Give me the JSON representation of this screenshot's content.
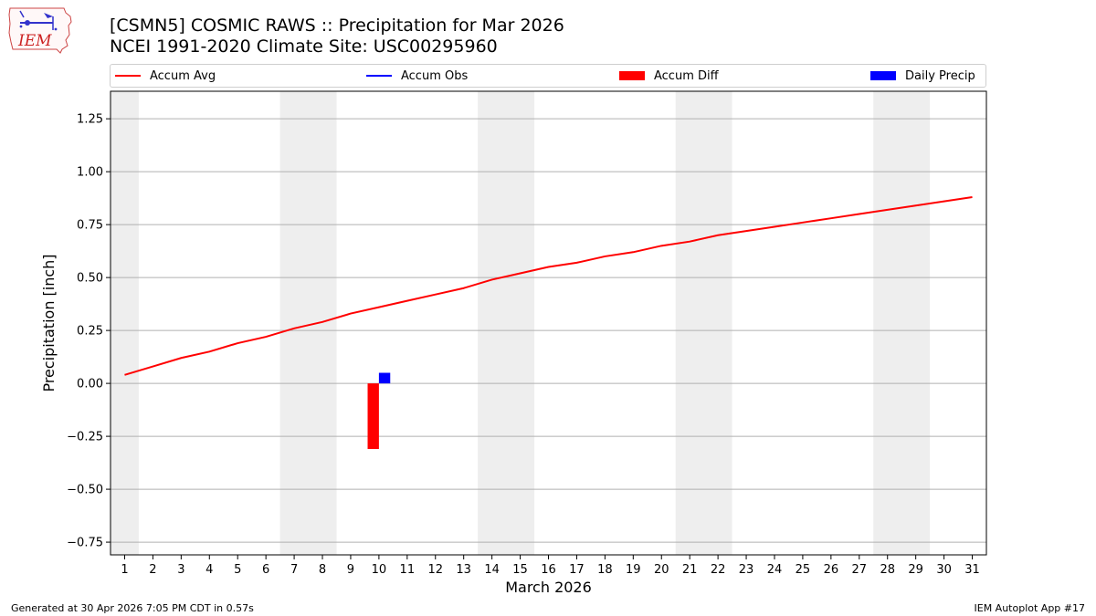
{
  "header": {
    "title_line1": "[CSMN5] COSMIC RAWS :: Precipitation for Mar 2026",
    "title_line2": "NCEI 1991-2020 Climate Site: USC00295960",
    "logo_text": "IEM"
  },
  "legend": {
    "items": [
      {
        "label": "Accum Avg",
        "color": "#ff0000",
        "kind": "line"
      },
      {
        "label": "Accum Obs",
        "color": "#0000ff",
        "kind": "line"
      },
      {
        "label": "Accum Diff",
        "color": "#ff0000",
        "kind": "bar"
      },
      {
        "label": "Daily Precip",
        "color": "#0000ff",
        "kind": "bar"
      }
    ]
  },
  "footer": {
    "left": "Generated at 30 Apr 2026 7:05 PM CDT in 0.57s",
    "right": "IEM Autoplot App #17"
  },
  "chart_data": {
    "type": "line",
    "title": "[CSMN5] COSMIC RAWS :: Precipitation for Mar 2026",
    "xlabel": "March 2026",
    "ylabel": "Precipitation [inch]",
    "xlim": [
      0.5,
      31.5
    ],
    "ylim": [
      -0.81,
      1.38
    ],
    "yticks": [
      -0.75,
      -0.5,
      -0.25,
      0.0,
      0.25,
      0.5,
      0.75,
      1.0,
      1.25
    ],
    "ytick_labels": [
      "−0.75",
      "−0.50",
      "−0.25",
      "0.00",
      "0.25",
      "0.50",
      "0.75",
      "1.00",
      "1.25"
    ],
    "x": [
      1,
      2,
      3,
      4,
      5,
      6,
      7,
      8,
      9,
      10,
      11,
      12,
      13,
      14,
      15,
      16,
      17,
      18,
      19,
      20,
      21,
      22,
      23,
      24,
      25,
      26,
      27,
      28,
      29,
      30,
      31
    ],
    "xtick_labels": [
      "1",
      "2",
      "3",
      "4",
      "5",
      "6",
      "7",
      "8",
      "9",
      "10",
      "11",
      "12",
      "13",
      "14",
      "15",
      "16",
      "17",
      "18",
      "19",
      "20",
      "21",
      "22",
      "23",
      "24",
      "25",
      "26",
      "27",
      "28",
      "29",
      "30",
      "31"
    ],
    "grid": "y",
    "legend_position": "top",
    "weekend_shading": [
      [
        0.5,
        1.5
      ],
      [
        6.5,
        8.5
      ],
      [
        13.5,
        15.5
      ],
      [
        20.5,
        22.5
      ],
      [
        27.5,
        29.5
      ]
    ],
    "series": [
      {
        "name": "Accum Avg",
        "type": "line",
        "color": "#ff0000",
        "x": [
          1,
          2,
          3,
          4,
          5,
          6,
          7,
          8,
          9,
          10,
          11,
          12,
          13,
          14,
          15,
          16,
          17,
          18,
          19,
          20,
          21,
          22,
          23,
          24,
          25,
          26,
          27,
          28,
          29,
          30,
          31
        ],
        "values": [
          0.04,
          0.08,
          0.12,
          0.15,
          0.19,
          0.22,
          0.26,
          0.29,
          0.33,
          0.36,
          0.39,
          0.42,
          0.45,
          0.49,
          0.52,
          0.55,
          0.57,
          0.6,
          0.62,
          0.65,
          0.67,
          0.7,
          0.72,
          0.74,
          0.76,
          0.78,
          0.8,
          0.82,
          0.84,
          0.86,
          0.88
        ]
      },
      {
        "name": "Accum Obs",
        "type": "line",
        "color": "#0000ff",
        "x": [],
        "values": []
      },
      {
        "name": "Accum Diff",
        "type": "bar",
        "color": "#ff0000",
        "x": [
          10
        ],
        "values": [
          -0.31
        ]
      },
      {
        "name": "Daily Precip",
        "type": "bar",
        "color": "#0000ff",
        "x": [
          10
        ],
        "values": [
          0.05
        ]
      }
    ]
  }
}
